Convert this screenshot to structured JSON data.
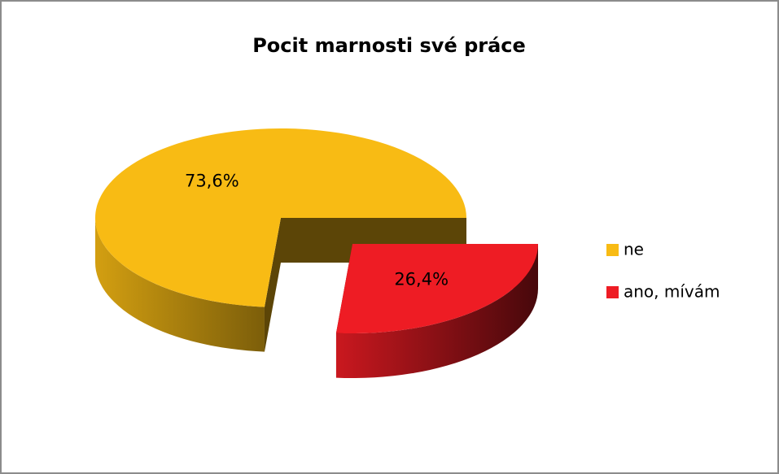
{
  "chart_data": {
    "type": "pie",
    "title": "Pocit marnosti své práce",
    "categories": [
      "ne",
      "ano, mívám"
    ],
    "values": [
      73.6,
      26.4
    ],
    "value_labels": [
      "73,6%",
      "26,4%"
    ],
    "colors": [
      "#f8bb14",
      "#ee1c24"
    ],
    "legend": "right"
  }
}
